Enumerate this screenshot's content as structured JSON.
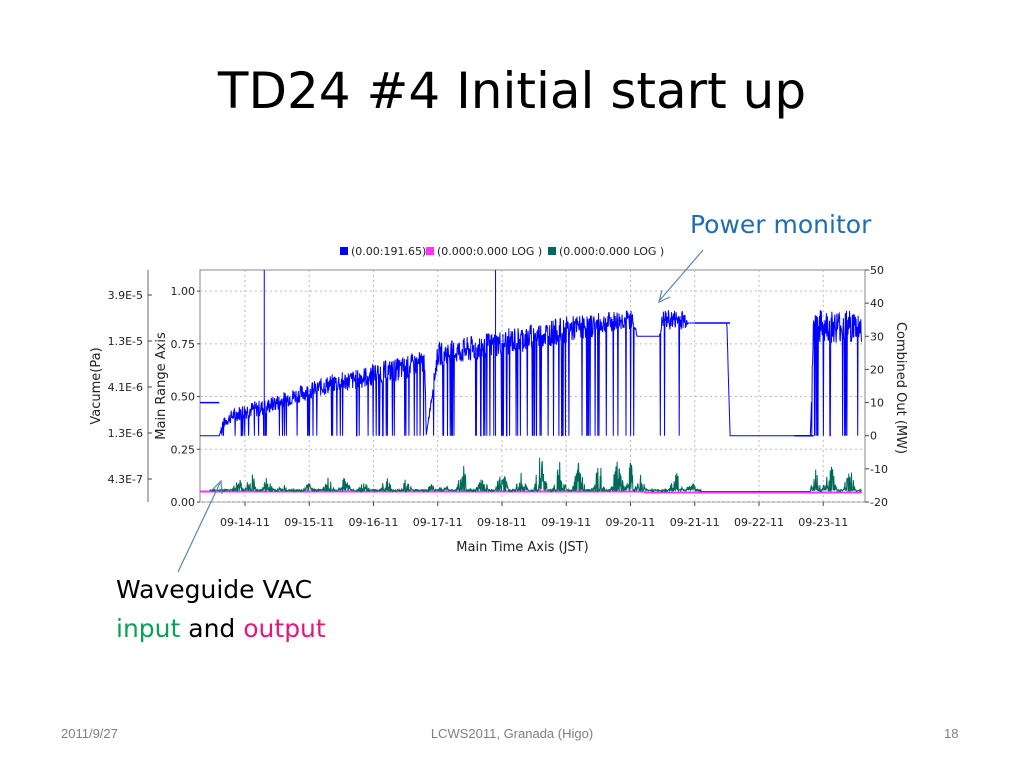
{
  "slide": {
    "title": "TD24 #4  Initial start up",
    "power_monitor_label": "Power monitor",
    "waveguide_line1": "Waveguide VAC",
    "waveguide_input": "input",
    "waveguide_and": " and ",
    "waveguide_output": "output",
    "colors": {
      "input": "#0aa05a",
      "output": "#e8157c",
      "power_label": "#1f6db3"
    }
  },
  "footer": {
    "date": "2011/9/27",
    "center": "LCWS2011, Granada (Higo)",
    "page": "18"
  },
  "chart_data": {
    "type": "line",
    "title": "",
    "xlabel": "Main Time Axis (JST)",
    "x_ticks": [
      "09-14-11",
      "09-15-11",
      "09-16-11",
      "09-17-11",
      "09-18-11",
      "09-19-11",
      "09-20-11",
      "09-21-11",
      "09-22-11",
      "09-23-11"
    ],
    "x_range_days": [
      13.3,
      23.65
    ],
    "y_left_main": {
      "label": "Main Range Axis",
      "ticks": [
        "0.00",
        "0.25",
        "0.50",
        "0.75",
        "1.00"
      ],
      "range": [
        0,
        1.1
      ]
    },
    "y_left_vacuum": {
      "label": "Vacume(Pa)",
      "ticks": [
        "4.3E-7",
        "1.3E-6",
        "4.1E-6",
        "1.3E-5",
        "3.9E-5"
      ]
    },
    "y_right": {
      "label": "Combined Out (MW)",
      "ticks": [
        "-20",
        "-10",
        "0",
        "10",
        "20",
        "30",
        "40",
        "50"
      ],
      "range": [
        -20,
        50
      ]
    },
    "grid": true,
    "legend_placement": "top",
    "series": [
      {
        "name": "(0.00:191.65)",
        "color": "#0000ff",
        "axis": "right",
        "envelope": [
          [
            13.3,
            0,
            0
          ],
          [
            13.6,
            0,
            0
          ],
          [
            13.65,
            2,
            5
          ],
          [
            13.8,
            4,
            8
          ],
          [
            14.0,
            5,
            10
          ],
          [
            14.3,
            6,
            11
          ],
          [
            14.7,
            9,
            14
          ],
          [
            15.0,
            11,
            16
          ],
          [
            15.4,
            13,
            19
          ],
          [
            15.75,
            14,
            20
          ],
          [
            16.0,
            15,
            22
          ],
          [
            16.5,
            17,
            24
          ],
          [
            16.8,
            19,
            26
          ],
          [
            16.82,
            0,
            0
          ],
          [
            17.0,
            21,
            28
          ],
          [
            17.5,
            22,
            30
          ],
          [
            18.0,
            24,
            32
          ],
          [
            18.5,
            26,
            34
          ],
          [
            19.0,
            28,
            36
          ],
          [
            19.5,
            30,
            37
          ],
          [
            19.9,
            32,
            38
          ],
          [
            20.05,
            32,
            38
          ],
          [
            20.1,
            30,
            30
          ],
          [
            20.45,
            30,
            30
          ],
          [
            20.5,
            32,
            38
          ],
          [
            20.85,
            32,
            38
          ],
          [
            20.9,
            34,
            34
          ],
          [
            21.5,
            34,
            34
          ],
          [
            21.55,
            0,
            0
          ],
          [
            22.8,
            0,
            0
          ],
          [
            22.85,
            28,
            38
          ],
          [
            23.6,
            28,
            38
          ]
        ],
        "dropouts_to": 0
      },
      {
        "name": "(0.000:0.000 LOG )",
        "color": "#ff33ff",
        "axis": "left_vacuum",
        "description_value": 0.045,
        "points": [
          [
            13.3,
            0.05
          ],
          [
            20.2,
            0.05
          ],
          [
            20.25,
            0.045
          ],
          [
            23.6,
            0.045
          ]
        ]
      },
      {
        "name": "(0.000:0.000 LOG )",
        "color": "#006a5a",
        "axis": "left_vacuum",
        "baseline": 0.05,
        "bursts": [
          [
            13.9,
            0.12
          ],
          [
            14.1,
            0.15
          ],
          [
            14.35,
            0.13
          ],
          [
            14.6,
            0.09
          ],
          [
            15.0,
            0.1
          ],
          [
            15.3,
            0.12
          ],
          [
            15.55,
            0.13
          ],
          [
            15.85,
            0.1
          ],
          [
            16.2,
            0.13
          ],
          [
            16.5,
            0.12
          ],
          [
            16.9,
            0.09
          ],
          [
            17.1,
            0.1
          ],
          [
            17.4,
            0.2
          ],
          [
            17.7,
            0.16
          ],
          [
            18.0,
            0.17
          ],
          [
            18.3,
            0.14
          ],
          [
            18.6,
            0.25
          ],
          [
            18.9,
            0.2
          ],
          [
            19.2,
            0.2
          ],
          [
            19.5,
            0.24
          ],
          [
            19.8,
            0.22
          ],
          [
            20.0,
            0.2
          ],
          [
            20.15,
            0.14
          ],
          [
            20.7,
            0.18
          ],
          [
            20.95,
            0.1
          ],
          [
            22.9,
            0.18
          ],
          [
            23.1,
            0.22
          ],
          [
            23.4,
            0.19
          ]
        ]
      }
    ]
  }
}
